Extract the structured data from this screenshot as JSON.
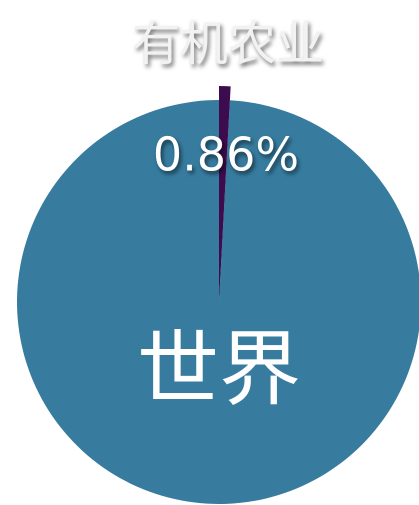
{
  "chart_data": {
    "type": "pie",
    "categories": [
      "有机农业",
      "世界"
    ],
    "values": [
      0.86,
      99.14
    ],
    "value_labels": [
      "0.86%",
      null
    ],
    "colors": [
      "#3d0c4f",
      "#377c9f"
    ]
  }
}
